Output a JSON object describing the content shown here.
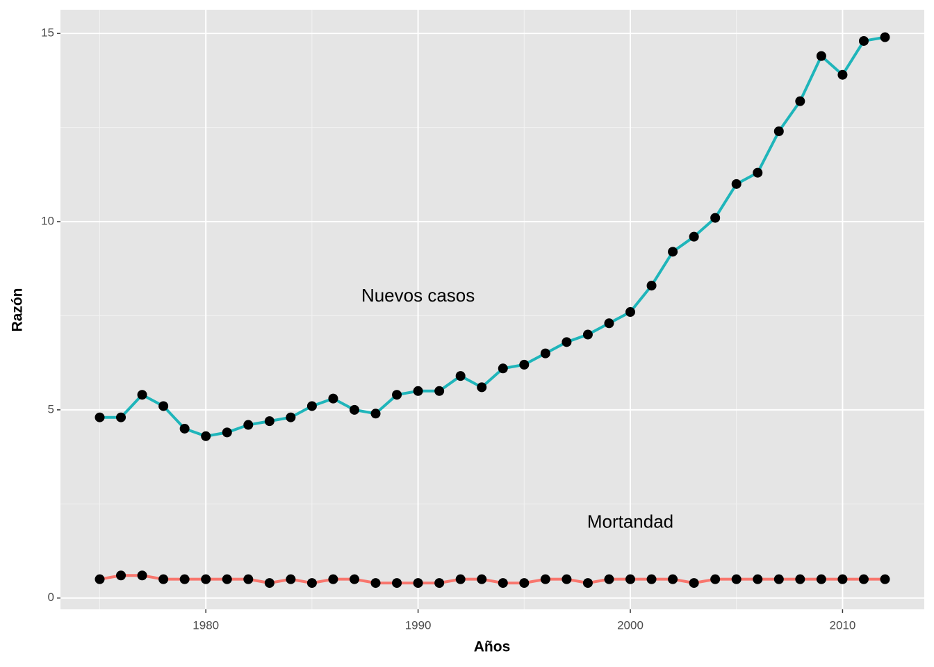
{
  "chart_data": {
    "type": "line",
    "x_label": "Años",
    "y_label": "Razón",
    "x": [
      1975,
      1976,
      1977,
      1978,
      1979,
      1980,
      1981,
      1982,
      1983,
      1984,
      1985,
      1986,
      1987,
      1988,
      1989,
      1990,
      1991,
      1992,
      1993,
      1994,
      1995,
      1996,
      1997,
      1998,
      1999,
      2000,
      2001,
      2002,
      2003,
      2004,
      2005,
      2006,
      2007,
      2008,
      2009,
      2010,
      2011,
      2012
    ],
    "series": [
      {
        "color": "#F8766D",
        "values": [
          0.5,
          0.6,
          0.6,
          0.5,
          0.5,
          0.5,
          0.5,
          0.5,
          0.4,
          0.5,
          0.4,
          0.5,
          0.5,
          0.4,
          0.4,
          0.4,
          0.4,
          0.5,
          0.5,
          0.4,
          0.4,
          0.5,
          0.5,
          0.4,
          0.5,
          0.5,
          0.5,
          0.5,
          0.4,
          0.5,
          0.5,
          0.5,
          0.5,
          0.5,
          0.5,
          0.5,
          0.5,
          0.5
        ]
      },
      {
        "color": "#1FB5BA",
        "values": [
          4.8,
          4.8,
          5.4,
          5.1,
          4.5,
          4.3,
          4.4,
          4.6,
          4.7,
          4.8,
          5.1,
          5.3,
          5.0,
          4.9,
          5.4,
          5.5,
          5.5,
          5.9,
          5.6,
          6.1,
          6.2,
          6.5,
          6.8,
          7.0,
          7.3,
          7.6,
          8.3,
          9.2,
          9.6,
          10.1,
          11.0,
          11.3,
          12.4,
          13.2,
          14.4,
          13.9,
          14.8,
          14.9
        ]
      }
    ],
    "point_color": "#000000",
    "annotations": [
      {
        "text": "Mortandad",
        "x": 2000,
        "y": 2.0
      },
      {
        "text": "Nuevos casos",
        "x": 1990,
        "y": 8.0
      }
    ],
    "xlim": [
      1973.15,
      2013.85
    ],
    "ylim": [
      -0.3,
      15.63
    ],
    "xticks": [
      1980,
      1990,
      2000,
      2010
    ],
    "yticks": [
      0,
      5,
      10,
      15
    ],
    "grid": true
  }
}
